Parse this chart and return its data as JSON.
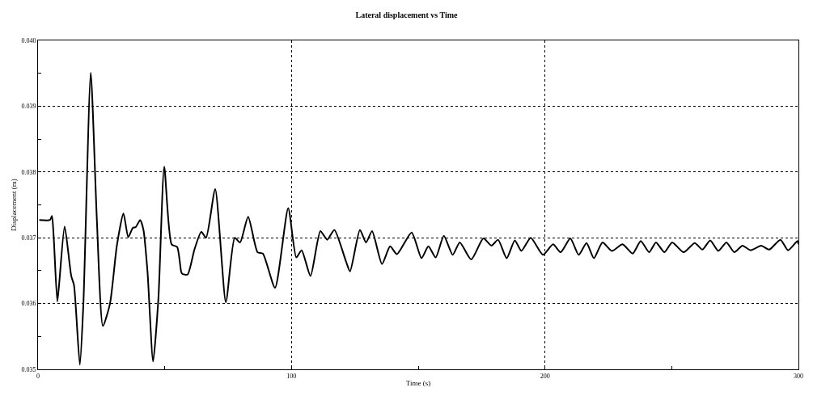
{
  "chart_data": {
    "type": "line",
    "title": "Lateral displacement vs Time",
    "xlabel": "Time (s)",
    "ylabel": "Displacement (m)",
    "x": [
      0.5,
      4.7,
      5.5,
      6.2,
      7.6,
      8.3,
      10.5,
      13.1,
      14.2,
      16.5,
      17.9,
      20.8,
      23.2,
      25.6,
      28.4,
      31.1,
      33.7,
      35.6,
      37.4,
      38.5,
      40.3,
      41.6,
      43.2,
      45.4,
      47.5,
      49.8,
      52.7,
      54.9,
      56.5,
      57.0,
      59.0,
      61.7,
      64.4,
      66.3,
      69.9,
      74.1,
      77.6,
      79.7,
      82.9,
      86.6,
      88.7,
      93.5,
      98.7,
      101.9,
      104.0,
      107.5,
      111.4,
      114.1,
      116.9,
      121.5,
      123.1,
      127.0,
      129.4,
      131.8,
      135.7,
      138.9,
      141.6,
      147.4,
      151.3,
      154.0,
      156.9,
      160.1,
      163.6,
      166.4,
      170.9,
      175.7,
      178.9,
      181.5,
      184.9,
      188.1,
      190.7,
      194.4,
      199.2,
      203.2,
      206.2,
      210.0,
      213.3,
      216.4,
      219.3,
      222.7,
      226.4,
      230.6,
      234.6,
      237.8,
      241.1,
      243.8,
      247.1,
      250.2,
      254.7,
      259.1,
      262.1,
      265.2,
      268.4,
      271.6,
      274.7,
      277.9,
      281.1,
      285.3,
      288.5,
      292.9,
      295.9,
      299.6,
      300
    ],
    "series": [
      {
        "color": "#000000",
        "values": [
          0.03727,
          0.03727,
          0.03733,
          0.037,
          0.03603,
          0.03628,
          0.03717,
          0.03642,
          0.03628,
          0.03507,
          0.036,
          0.03951,
          0.03729,
          0.03566,
          0.036,
          0.03688,
          0.03737,
          0.03701,
          0.03715,
          0.03716,
          0.03727,
          0.03712,
          0.03648,
          0.03512,
          0.03608,
          0.03808,
          0.0369,
          0.03686,
          0.03648,
          0.03645,
          0.03644,
          0.03682,
          0.03709,
          0.037,
          0.03774,
          0.03602,
          0.037,
          0.03693,
          0.03732,
          0.03678,
          0.03676,
          0.03624,
          0.03745,
          0.0367,
          0.03681,
          0.03642,
          0.0371,
          0.03697,
          0.03712,
          0.03664,
          0.03649,
          0.03712,
          0.03693,
          0.0371,
          0.0366,
          0.03687,
          0.03675,
          0.03708,
          0.03669,
          0.03687,
          0.0367,
          0.03703,
          0.03674,
          0.03693,
          0.03667,
          0.03699,
          0.03688,
          0.03697,
          0.03669,
          0.03696,
          0.0368,
          0.037,
          0.03674,
          0.0369,
          0.03678,
          0.03699,
          0.03674,
          0.03692,
          0.03669,
          0.03693,
          0.0368,
          0.0369,
          0.03676,
          0.03695,
          0.03678,
          0.03693,
          0.03678,
          0.03693,
          0.03678,
          0.03692,
          0.03682,
          0.03696,
          0.0368,
          0.03693,
          0.03678,
          0.03688,
          0.03681,
          0.03688,
          0.03682,
          0.03697,
          0.03681,
          0.03695,
          0.0369
        ]
      }
    ],
    "xlim": [
      0,
      300
    ],
    "xticks": [
      0,
      {
        "value": 50,
        "label": null
      },
      100,
      {
        "value": 150,
        "label": null
      },
      200,
      {
        "value": 250,
        "label": null
      },
      300
    ],
    "ylim": [
      0.035,
      0.04
    ],
    "yticks": [
      0.035,
      {
        "value": 0.0355,
        "label": null
      },
      0.036,
      {
        "value": 0.0365,
        "label": null
      },
      0.037,
      {
        "value": 0.0375,
        "label": null
      },
      0.038,
      {
        "value": 0.0385,
        "label": null
      },
      0.039,
      {
        "value": 0.0395,
        "label": null
      },
      {
        "value": 0.04,
        "label": "0.040"
      }
    ],
    "grid": true,
    "marker": "none",
    "line_style": "solid"
  }
}
